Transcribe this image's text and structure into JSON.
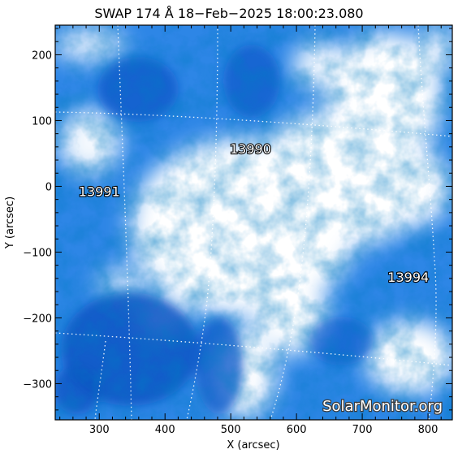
{
  "title": "SWAP 174 Å 18−Feb−2025 18:00:23.080",
  "xlabel": "X (arcsec)",
  "ylabel": "Y (arcsec)",
  "x_ticks": [
    "300",
    "400",
    "500",
    "600",
    "700",
    "800"
  ],
  "y_ticks": [
    "200",
    "100",
    "0",
    "−100",
    "−200",
    "−300"
  ],
  "x_range": [
    233,
    837
  ],
  "y_range": [
    -355,
    245
  ],
  "x_tick_values": [
    300,
    400,
    500,
    600,
    700,
    800
  ],
  "y_tick_values": [
    200,
    100,
    0,
    -100,
    -200,
    -300
  ],
  "active_regions": [
    {
      "label": "13990",
      "x": 530,
      "y": 50
    },
    {
      "label": "13991",
      "x": 300,
      "y": -15
    },
    {
      "label": "13994",
      "x": 770,
      "y": -145
    }
  ],
  "watermark": "SolarMonitor.org",
  "colors": {
    "frame": "#000000",
    "grid": "#ffffff",
    "image_base": "#1a7ae0"
  }
}
